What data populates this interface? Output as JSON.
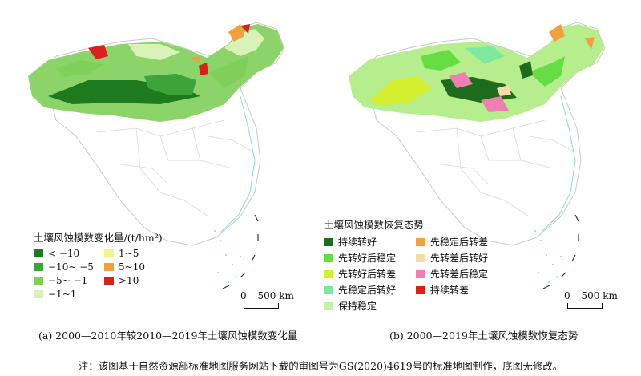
{
  "panel_a": {
    "legend_title": "土壤风蚀模数变化量/(t/hm²)",
    "legend": [
      {
        "label": "< −10",
        "color": "#1e7a1e"
      },
      {
        "label": "1~5",
        "color": "#f2f58a"
      },
      {
        "label": "−10~ −5",
        "color": "#3da33a"
      },
      {
        "label": "5~10",
        "color": "#f0a040"
      },
      {
        "label": "−5~ −1",
        "color": "#7ed05a"
      },
      {
        "label": ">10",
        "color": "#d8201c"
      },
      {
        "label": "−1~1",
        "color": "#d9f2b8"
      }
    ],
    "scale_zero": "0",
    "scale_label": "500 km",
    "caption": "(a) 2000—2010年较2010—2019年土壤风蚀模数变化量"
  },
  "panel_b": {
    "legend_title": "土壤风蚀模数恢复态势",
    "legend": [
      {
        "label": "持续转好",
        "color": "#1e6b1e"
      },
      {
        "label": "先稳定后转差",
        "color": "#f0a040"
      },
      {
        "label": "先转好后稳定",
        "color": "#66dd44"
      },
      {
        "label": "先转差后转好",
        "color": "#f2dca8"
      },
      {
        "label": "先转好后转差",
        "color": "#d4ee30"
      },
      {
        "label": "先转差后稳定",
        "color": "#ee7fb0"
      },
      {
        "label": "先稳定后转好",
        "color": "#7ee8a0"
      },
      {
        "label": "持续转差",
        "color": "#d8201c"
      },
      {
        "label": "保持稳定",
        "color": "#c4f0a8"
      }
    ],
    "scale_zero": "0",
    "scale_label": "500 km",
    "caption": "(b) 2000—2019年土壤风蚀模数恢复态势"
  },
  "note": "注：该图基于自然资源部标准地图服务网站下载的审图号为GS(2020)4619号的标准地图制作，底图无修改。"
}
